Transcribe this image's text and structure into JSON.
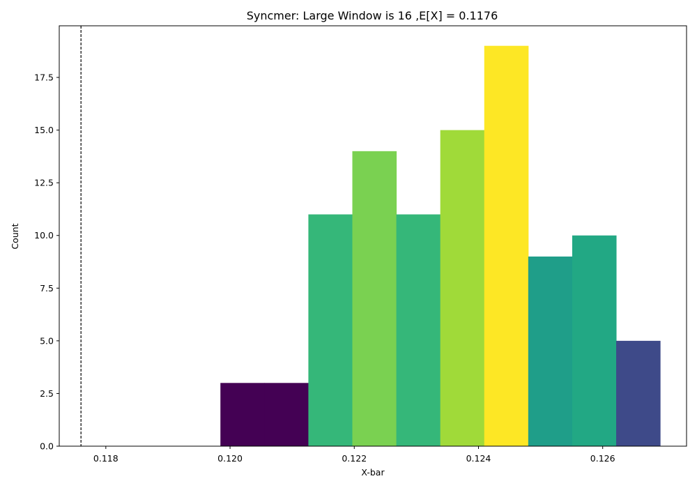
{
  "chart_data": {
    "type": "bar",
    "title": "Syncmer: Large Window is 16 ,E[X] = 0.1176",
    "xlabel": "X-bar",
    "ylabel": "Count",
    "xlim": [
      0.11725,
      0.12735
    ],
    "ylim": [
      0,
      19.95
    ],
    "bin_width": 0.000708,
    "bins": [
      {
        "start": 0.119845,
        "value": 3,
        "color": "#440154"
      },
      {
        "start": 0.120553,
        "value": 3,
        "color": "#440154"
      },
      {
        "start": 0.121261,
        "value": 11,
        "color": "#35b779"
      },
      {
        "start": 0.121969,
        "value": 14,
        "color": "#7ad151"
      },
      {
        "start": 0.122677,
        "value": 11,
        "color": "#35b779"
      },
      {
        "start": 0.123385,
        "value": 15,
        "color": "#a0da39"
      },
      {
        "start": 0.124093,
        "value": 19,
        "color": "#fde725"
      },
      {
        "start": 0.124801,
        "value": 9,
        "color": "#1f9e89"
      },
      {
        "start": 0.125509,
        "value": 10,
        "color": "#22a884"
      },
      {
        "start": 0.126217,
        "value": 5,
        "color": "#3e4a89"
      }
    ],
    "reference_line": {
      "x": 0.1176,
      "style": "dashed",
      "color": "#000000"
    },
    "x_ticks": [
      {
        "value": 0.118,
        "label": "0.118"
      },
      {
        "value": 0.12,
        "label": "0.120"
      },
      {
        "value": 0.122,
        "label": "0.122"
      },
      {
        "value": 0.124,
        "label": "0.124"
      },
      {
        "value": 0.126,
        "label": "0.126"
      }
    ],
    "y_ticks": [
      {
        "value": 0.0,
        "label": "0.0"
      },
      {
        "value": 2.5,
        "label": "2.5"
      },
      {
        "value": 5.0,
        "label": "5.0"
      },
      {
        "value": 7.5,
        "label": "7.5"
      },
      {
        "value": 10.0,
        "label": "10.0"
      },
      {
        "value": 12.5,
        "label": "12.5"
      },
      {
        "value": 15.0,
        "label": "15.0"
      },
      {
        "value": 17.5,
        "label": "17.5"
      }
    ],
    "grid": false,
    "legend": "none"
  }
}
